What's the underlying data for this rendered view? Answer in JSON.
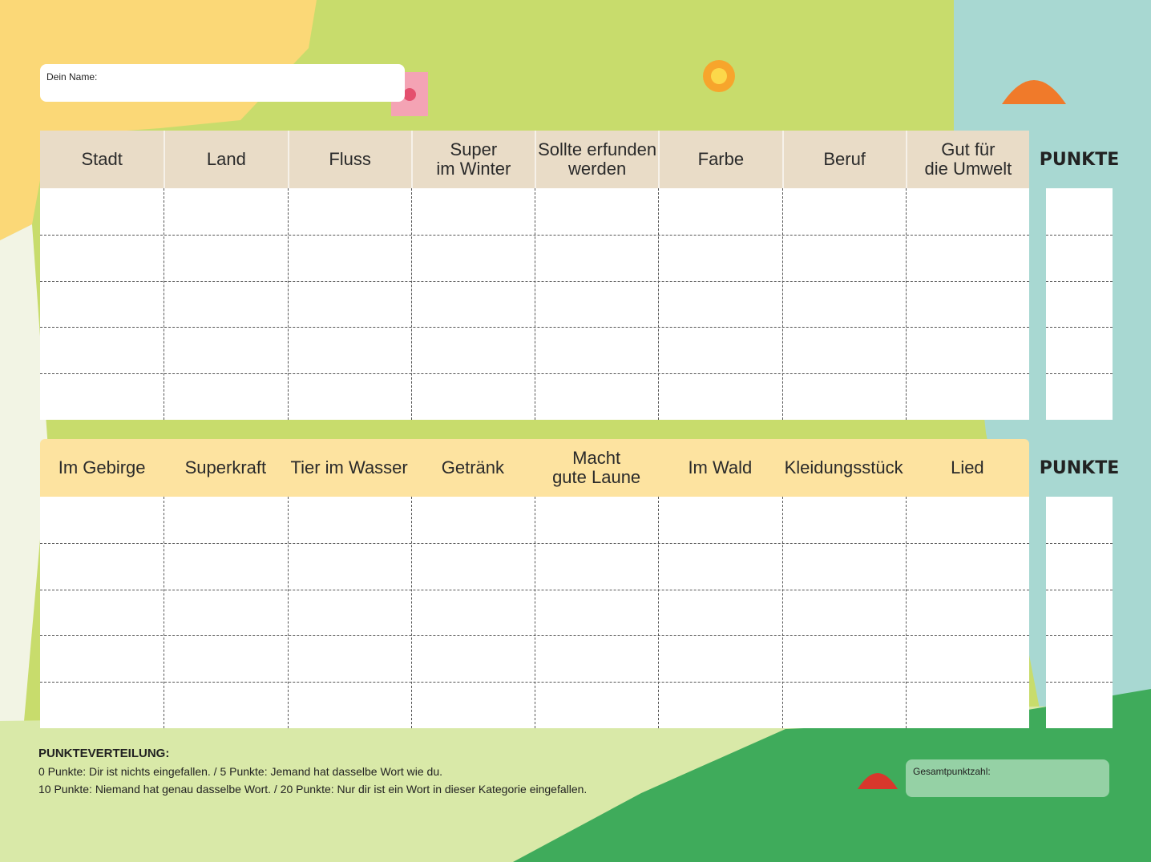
{
  "name_label": "Dein Name:",
  "tables": [
    {
      "headers": [
        [
          "Stadt"
        ],
        [
          "Land"
        ],
        [
          "Fluss"
        ],
        [
          "Super",
          "im Winter"
        ],
        [
          "Sollte erfunden",
          "werden"
        ],
        [
          "Farbe"
        ],
        [
          "Beruf"
        ],
        [
          "Gut für",
          "die Umwelt"
        ]
      ],
      "points_header": "PUNKTE"
    },
    {
      "headers": [
        [
          "Im Gebirge"
        ],
        [
          "Superkraft"
        ],
        [
          "Tier im Wasser"
        ],
        [
          "Getränk"
        ],
        [
          "Macht",
          "gute Laune"
        ],
        [
          "Im Wald"
        ],
        [
          "Kleidungsstück"
        ],
        [
          "Lied"
        ]
      ],
      "points_header": "PUNKTE"
    }
  ],
  "scoring": {
    "title": "PUNKTEVERTEILUNG:",
    "lines": [
      "0 Punkte: Dir ist nichts eingefallen. / 5 Punkte: Jemand hat dasselbe Wort wie du.",
      "10 Punkte: Niemand hat genau dasselbe Wort. / 20 Punkte: Nur dir ist ein Wort in dieser Kategorie eingefallen."
    ]
  },
  "total_label": "Gesamtpunktzahl:"
}
